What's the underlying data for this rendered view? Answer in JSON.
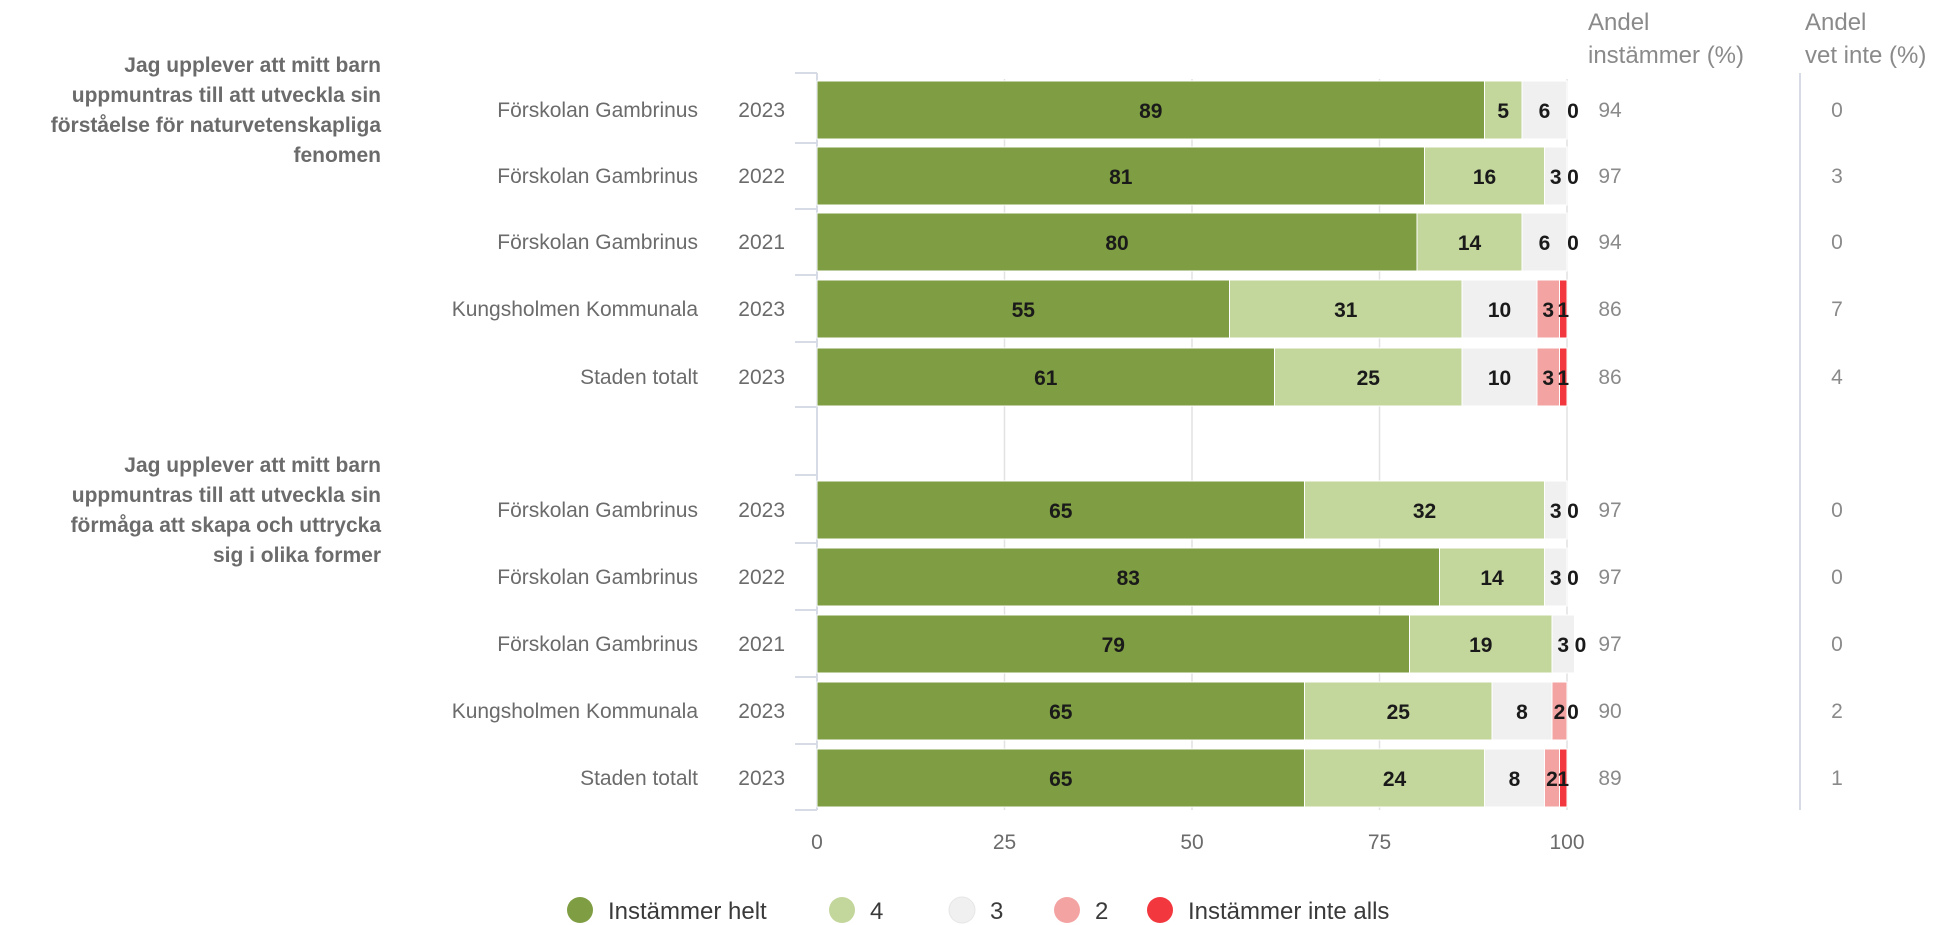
{
  "chart_data": {
    "type": "bar",
    "orientation": "horizontal",
    "stacked": true,
    "xlim": [
      0,
      100
    ],
    "xticks": [
      0,
      25,
      50,
      75,
      100
    ],
    "grid": true,
    "legend_position": "bottom",
    "column_headers": {
      "agree": [
        "Andel",
        "instämmer (%)"
      ],
      "dontknow": [
        "Andel",
        "vet inte (%)"
      ]
    },
    "legend": [
      {
        "name": "Instämmer helt",
        "color": "#7f9d42"
      },
      {
        "name": "4",
        "color": "#c3d69b"
      },
      {
        "name": "3",
        "color": "#f0f0f0"
      },
      {
        "name": "2",
        "color": "#f4a3a3"
      },
      {
        "name": "Instämmer inte alls",
        "color": "#f2383e"
      }
    ],
    "groups": [
      {
        "question": [
          "Jag upplever att mitt barn",
          "uppmuntras till att utveckla sin",
          "förståelse för naturvetenskapliga",
          "fenomen"
        ],
        "rows": [
          {
            "unit": "Förskolan Gambrinus",
            "year": "2023",
            "values": [
              89,
              5,
              6,
              0,
              0
            ],
            "labels": [
              "89",
              "5",
              "6",
              "0",
              ""
            ],
            "agree": "94",
            "dontknow": "0"
          },
          {
            "unit": "Förskolan Gambrinus",
            "year": "2022",
            "values": [
              81,
              16,
              3,
              0,
              0
            ],
            "labels": [
              "81",
              "16",
              "3",
              "0",
              ""
            ],
            "agree": "97",
            "dontknow": "3"
          },
          {
            "unit": "Förskolan Gambrinus",
            "year": "2021",
            "values": [
              80,
              14,
              6,
              0,
              0
            ],
            "labels": [
              "80",
              "14",
              "6",
              "0",
              ""
            ],
            "agree": "94",
            "dontknow": "0"
          },
          {
            "unit": "Kungsholmen Kommunala",
            "year": "2023",
            "values": [
              55,
              31,
              10,
              3,
              1
            ],
            "labels": [
              "55",
              "31",
              "10",
              "3",
              "1"
            ],
            "agree": "86",
            "dontknow": "7"
          },
          {
            "unit": "Staden totalt",
            "year": "2023",
            "values": [
              61,
              25,
              10,
              3,
              1
            ],
            "labels": [
              "61",
              "25",
              "10",
              "3",
              "1"
            ],
            "agree": "86",
            "dontknow": "4"
          }
        ]
      },
      {
        "question": [
          "Jag upplever att mitt barn",
          "uppmuntras till att utveckla sin",
          "förmåga att skapa och uttrycka",
          "sig i olika former"
        ],
        "rows": [
          {
            "unit": "Förskolan Gambrinus",
            "year": "2023",
            "values": [
              65,
              32,
              3,
              0,
              0
            ],
            "labels": [
              "65",
              "32",
              "3",
              "0",
              ""
            ],
            "agree": "97",
            "dontknow": "0"
          },
          {
            "unit": "Förskolan Gambrinus",
            "year": "2022",
            "values": [
              83,
              14,
              3,
              0,
              0
            ],
            "labels": [
              "83",
              "14",
              "3",
              "0",
              ""
            ],
            "agree": "97",
            "dontknow": "0"
          },
          {
            "unit": "Förskolan Gambrinus",
            "year": "2021",
            "values": [
              79,
              19,
              3,
              0,
              0
            ],
            "labels": [
              "79",
              "19",
              "3",
              "0",
              ""
            ],
            "agree": "97",
            "dontknow": "0"
          },
          {
            "unit": "Kungsholmen Kommunala",
            "year": "2023",
            "values": [
              65,
              25,
              8,
              2,
              0
            ],
            "labels": [
              "65",
              "25",
              "8",
              "2",
              "0"
            ],
            "agree": "90",
            "dontknow": "2"
          },
          {
            "unit": "Staden totalt",
            "year": "2023",
            "values": [
              65,
              24,
              8,
              2,
              1
            ],
            "labels": [
              "65",
              "24",
              "8",
              "2",
              "1"
            ],
            "agree": "89",
            "dontknow": "1"
          }
        ]
      }
    ]
  }
}
